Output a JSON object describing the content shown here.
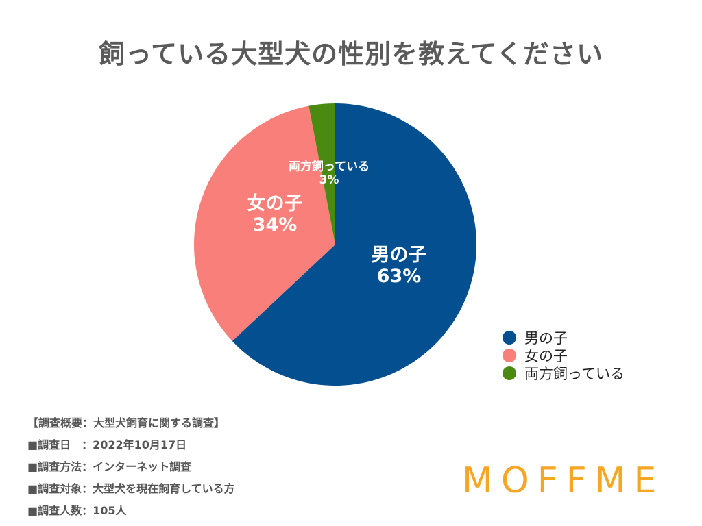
{
  "title": "飼っている大型犬の性別を教えてください",
  "chart_data": {
    "type": "pie",
    "title": "飼っている大型犬の性別を教えてください",
    "legend_position": "bottom-right",
    "slices": [
      {
        "label": "男の子",
        "value": 63,
        "display": "63%",
        "color": "#044F8F"
      },
      {
        "label": "女の子",
        "value": 34,
        "display": "34%",
        "color": "#F97F7A"
      },
      {
        "label": "両方飼っている",
        "value": 3,
        "display": "3%",
        "color": "#4A8A10"
      }
    ]
  },
  "survey": {
    "heading": "【調査概要：大型犬飼育に関する調査】",
    "lines": [
      "■調査日　：2022年10月17日",
      "■調査方法：インターネット調査",
      "■調査対象：大型犬を現在飼育している方",
      "■調査人数：105人"
    ]
  },
  "logo": "MOFFME"
}
